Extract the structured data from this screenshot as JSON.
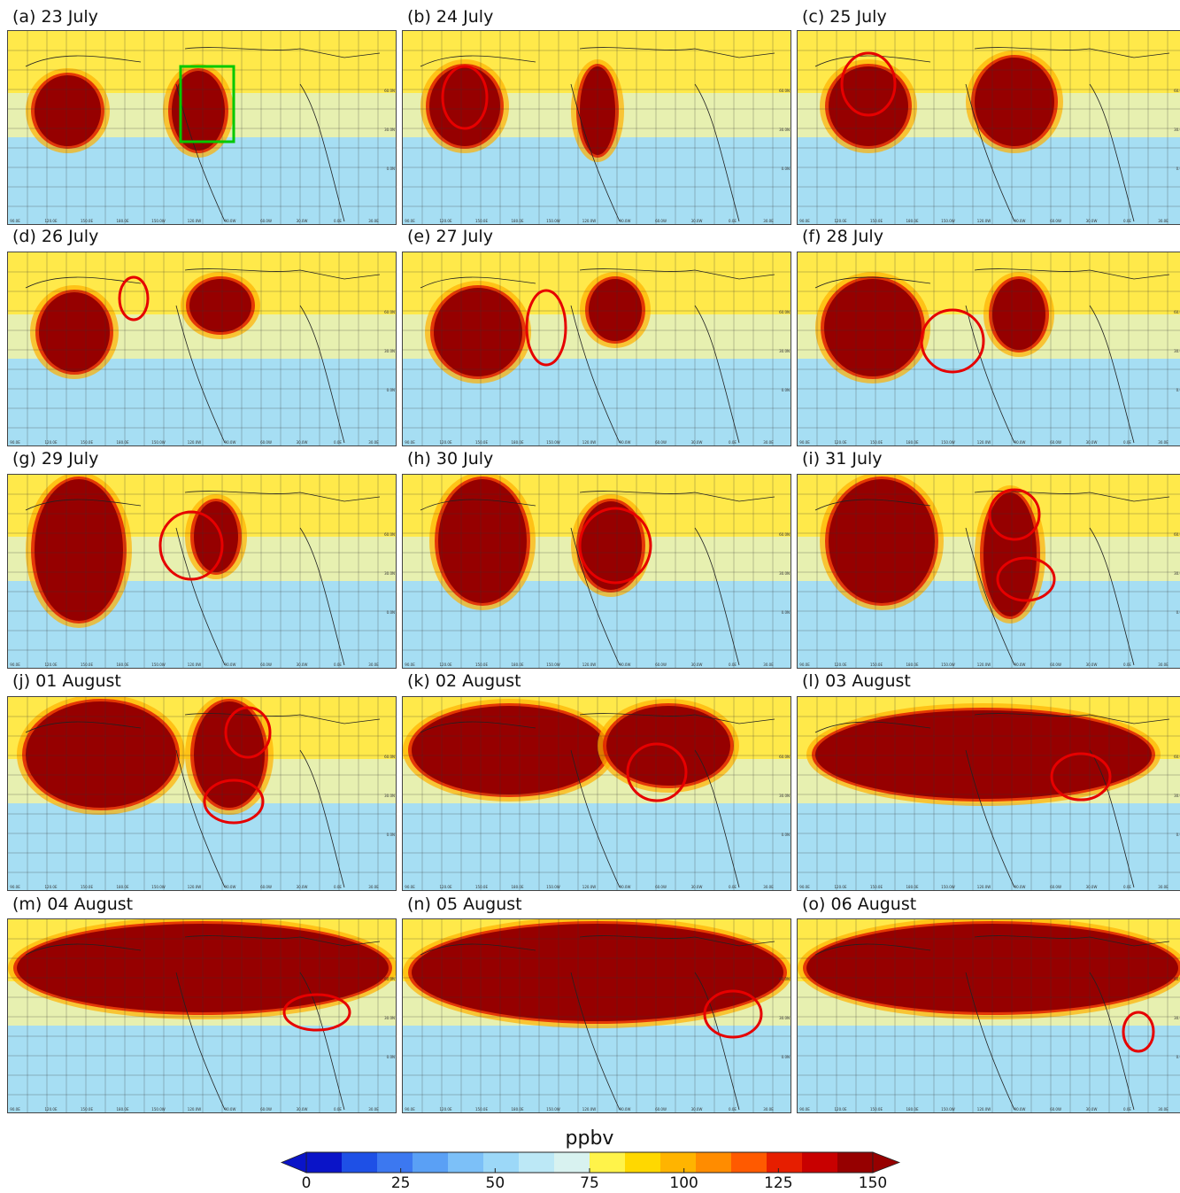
{
  "panels": [
    {
      "label": "(a) 23 July"
    },
    {
      "label": "(b) 24 July"
    },
    {
      "label": "(c) 25 July"
    },
    {
      "label": "(d) 26 July"
    },
    {
      "label": "(e) 27 July"
    },
    {
      "label": "(f) 28 July"
    },
    {
      "label": "(g) 29 July"
    },
    {
      "label": "(h) 30 July"
    },
    {
      "label": "(i) 31 July"
    },
    {
      "label": "(j) 01 August"
    },
    {
      "label": "(k) 02 August"
    },
    {
      "label": "(l) 03 August"
    },
    {
      "label": "(m) 04 August"
    },
    {
      "label": "(n) 05 August"
    },
    {
      "label": "(o) 06 August"
    }
  ],
  "map_lon_ticks": [
    "90.0E",
    "120.0E",
    "150.0E",
    "180.0E",
    "150.0W",
    "120.0W",
    "90.0W",
    "60.0W",
    "30.0W",
    "0.0E",
    "30.0E"
  ],
  "map_lat_ticks": [
    "60.0N",
    "30.0N",
    "0.0N"
  ],
  "colorbar": {
    "unit": "ppbv",
    "ticks": [
      "0",
      "25",
      "50",
      "75",
      "100",
      "125",
      "150"
    ],
    "colors": [
      "#0a14c8",
      "#1e50e6",
      "#3c78f0",
      "#5aa0f5",
      "#7cc0f8",
      "#9cd8f8",
      "#bce8f6",
      "#d8f2f0",
      "#fff34a",
      "#ffd800",
      "#ffb400",
      "#ff8c00",
      "#ff5a00",
      "#e61e00",
      "#c80000",
      "#960000"
    ],
    "under_color": "#0a14c8",
    "over_color": "#960000"
  },
  "highlights": {
    "circle_color": "#e60000",
    "box_color": "#00c800"
  }
}
